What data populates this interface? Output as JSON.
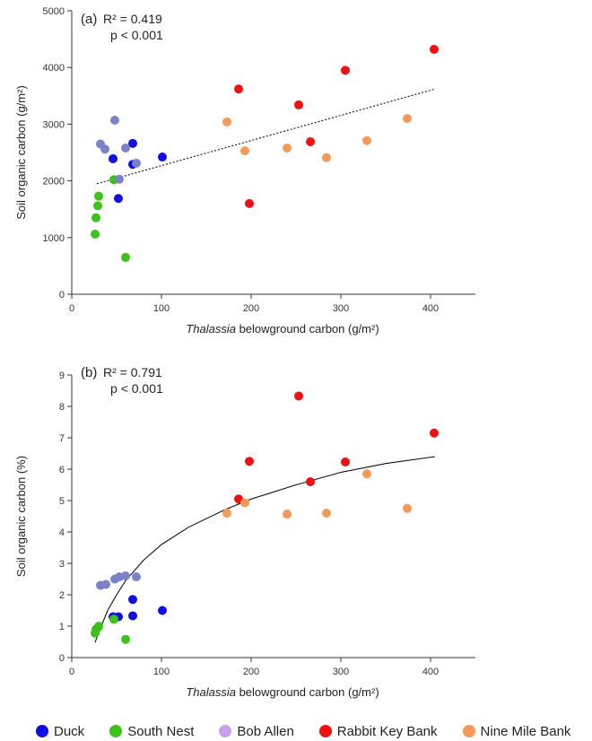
{
  "legend": [
    {
      "name": "Duck",
      "color": "#1010e0"
    },
    {
      "name": "South Nest",
      "color": "#3cc21a"
    },
    {
      "name": "Bob Allen",
      "color": "#7b82c7"
    },
    {
      "name": "Rabbit Key Bank",
      "color": "#ee1111"
    },
    {
      "name": "Nine Mile Bank",
      "color": "#f4995a"
    }
  ],
  "legend_marker_color": "#c9a0ea",
  "chart_data": [
    {
      "type": "scatter",
      "panel": "(a)",
      "stats": {
        "r2": "R² = 0.419",
        "p": "p < 0.001"
      },
      "xlabel_italic": "Thalassia",
      "xlabel_rest": " belowground carbon (g/m²)",
      "ylabel": "Soil organic carbon (g/m²)",
      "xlim": [
        0,
        450
      ],
      "ylim": [
        0,
        5000
      ],
      "xticks": [
        0,
        100,
        200,
        300,
        400
      ],
      "yticks": [
        0,
        1000,
        2000,
        3000,
        4000,
        5000
      ],
      "trend": {
        "type": "linear",
        "style": "dotted",
        "points": [
          [
            28,
            1950
          ],
          [
            405,
            3620
          ]
        ]
      },
      "series": [
        {
          "name": "Duck",
          "points": [
            [
              46,
              2390
            ],
            [
              52,
              1690
            ],
            [
              68,
              2290
            ],
            [
              68,
              2660
            ],
            [
              101,
              2420
            ]
          ]
        },
        {
          "name": "South Nest",
          "points": [
            [
              26,
              1060
            ],
            [
              27,
              1350
            ],
            [
              29,
              1560
            ],
            [
              30,
              1730
            ],
            [
              47,
              2020
            ],
            [
              60,
              650
            ]
          ]
        },
        {
          "name": "Bob Allen",
          "points": [
            [
              32,
              2650
            ],
            [
              37,
              2560
            ],
            [
              48,
              3070
            ],
            [
              53,
              2030
            ],
            [
              60,
              2580
            ],
            [
              72,
              2310
            ]
          ]
        },
        {
          "name": "Rabbit Key Bank",
          "points": [
            [
              186,
              3620
            ],
            [
              198,
              1600
            ],
            [
              253,
              3340
            ],
            [
              266,
              2690
            ],
            [
              305,
              3950
            ],
            [
              404,
              4320
            ]
          ]
        },
        {
          "name": "Nine Mile Bank",
          "points": [
            [
              173,
              3040
            ],
            [
              193,
              2530
            ],
            [
              240,
              2580
            ],
            [
              284,
              2410
            ],
            [
              329,
              2710
            ],
            [
              374,
              3100
            ]
          ]
        }
      ]
    },
    {
      "type": "scatter",
      "panel": "(b)",
      "stats": {
        "r2": "R² = 0.791",
        "p": "p < 0.001"
      },
      "xlabel_italic": "Thalassia",
      "xlabel_rest": " belowground carbon (g/m²)",
      "ylabel": "Soil organic carbon (%)",
      "xlim": [
        0,
        450
      ],
      "ylim": [
        0,
        9
      ],
      "xticks": [
        0,
        100,
        200,
        300,
        400
      ],
      "yticks": [
        0,
        1,
        2,
        3,
        4,
        5,
        6,
        7,
        8,
        9
      ],
      "trend": {
        "type": "logarithmic",
        "style": "solid",
        "points": [
          [
            26,
            0.48
          ],
          [
            30,
            0.8
          ],
          [
            40,
            1.5
          ],
          [
            50,
            2.0
          ],
          [
            60,
            2.45
          ],
          [
            80,
            3.1
          ],
          [
            100,
            3.6
          ],
          [
            130,
            4.15
          ],
          [
            170,
            4.7
          ],
          [
            200,
            5.05
          ],
          [
            250,
            5.5
          ],
          [
            300,
            5.9
          ],
          [
            350,
            6.18
          ],
          [
            405,
            6.4
          ]
        ]
      },
      "series": [
        {
          "name": "Duck",
          "points": [
            [
              46,
              1.3
            ],
            [
              52,
              1.3
            ],
            [
              68,
              1.33
            ],
            [
              68,
              1.85
            ],
            [
              101,
              1.5
            ]
          ]
        },
        {
          "name": "South Nest",
          "points": [
            [
              26,
              0.78
            ],
            [
              27,
              0.9
            ],
            [
              29,
              0.95
            ],
            [
              30,
              1.0
            ],
            [
              47,
              1.22
            ],
            [
              60,
              0.58
            ]
          ]
        },
        {
          "name": "Bob Allen",
          "points": [
            [
              32,
              2.3
            ],
            [
              38,
              2.33
            ],
            [
              48,
              2.5
            ],
            [
              53,
              2.57
            ],
            [
              60,
              2.6
            ],
            [
              72,
              2.57
            ]
          ]
        },
        {
          "name": "Rabbit Key Bank",
          "points": [
            [
              186,
              5.05
            ],
            [
              198,
              6.25
            ],
            [
              253,
              8.33
            ],
            [
              266,
              5.6
            ],
            [
              305,
              6.23
            ],
            [
              404,
              7.15
            ]
          ]
        },
        {
          "name": "Nine Mile Bank",
          "points": [
            [
              173,
              4.6
            ],
            [
              193,
              4.93
            ],
            [
              240,
              4.57
            ],
            [
              284,
              4.6
            ],
            [
              329,
              5.85
            ],
            [
              374,
              4.75
            ]
          ]
        }
      ]
    }
  ]
}
